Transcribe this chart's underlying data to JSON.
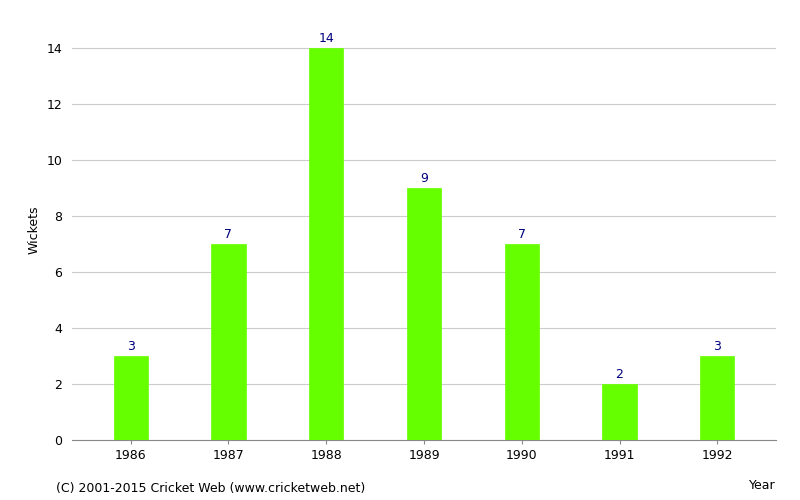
{
  "years": [
    "1986",
    "1987",
    "1988",
    "1989",
    "1990",
    "1991",
    "1992"
  ],
  "values": [
    3,
    7,
    14,
    9,
    7,
    2,
    3
  ],
  "bar_color": "#66ff00",
  "bar_edge_color": "#66ff00",
  "label_color": "#000080",
  "xlabel": "Year",
  "ylabel": "Wickets",
  "ylim": [
    0,
    15.0
  ],
  "yticks": [
    0,
    2,
    4,
    6,
    8,
    10,
    12,
    14
  ],
  "grid_color": "#cccccc",
  "background_color": "#ffffff",
  "footnote": "(C) 2001-2015 Cricket Web (www.cricketweb.net)",
  "label_fontsize": 9,
  "axis_fontsize": 9,
  "footnote_fontsize": 9
}
